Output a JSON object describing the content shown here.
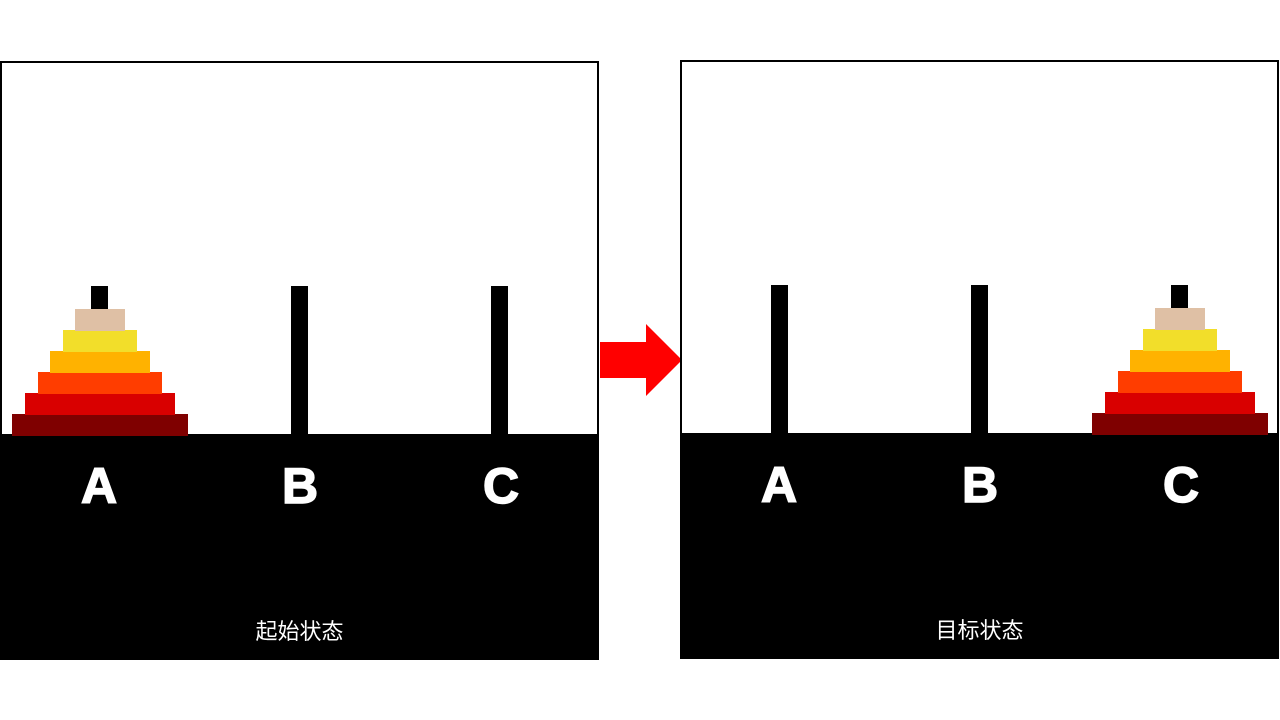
{
  "colors": {
    "ground": "#000000",
    "peg": "#000000",
    "arrow": "#ff0000",
    "label": "#ffffff",
    "disks_bottom_to_top": [
      "#7f0000",
      "#d90000",
      "#ff3d00",
      "#ffb200",
      "#f2de2a",
      "#dfc0a5"
    ]
  },
  "start_panel": {
    "pegs": [
      "A",
      "B",
      "C"
    ],
    "disk_peg": "A",
    "disk_count": 6,
    "caption": "起始状态"
  },
  "target_panel": {
    "pegs": [
      "A",
      "B",
      "C"
    ],
    "disk_peg": "C",
    "disk_count": 6,
    "caption": "目标状态"
  },
  "arrow_icon": "right-arrow-icon"
}
